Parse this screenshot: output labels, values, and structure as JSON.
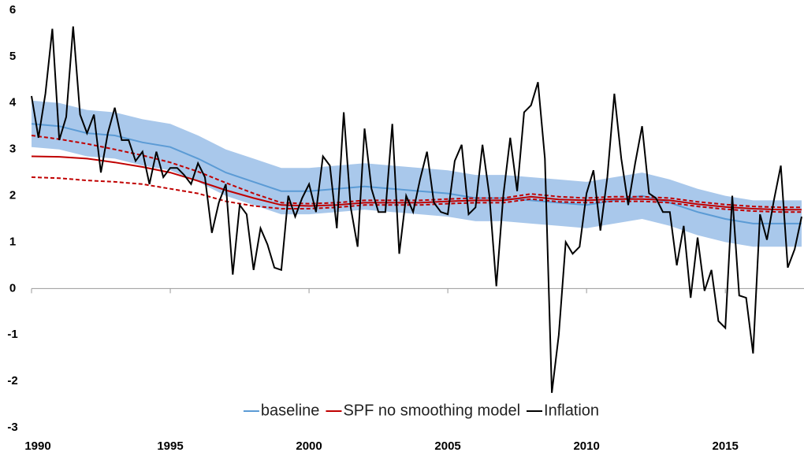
{
  "chart_data": {
    "type": "line",
    "xlim": [
      1990,
      2017.75
    ],
    "xticks": [
      1990,
      1995,
      2000,
      2005,
      2010,
      2015
    ],
    "ylim": [
      -3,
      6
    ],
    "yticks": [
      -3,
      -2,
      -1,
      0,
      1,
      2,
      3,
      4,
      5,
      6
    ],
    "legend": "bottom",
    "series": [
      {
        "name": "baseline",
        "color": "#5b9bd5",
        "band_color": "#a9c8eb",
        "x": [
          1990,
          1991,
          1992,
          1993,
          1994,
          1995,
          1996,
          1997,
          1998,
          1999,
          2000,
          2001,
          2002,
          2003,
          2004,
          2005,
          2006,
          2007,
          2008,
          2009,
          2010,
          2011,
          2012,
          2013,
          2014,
          2015,
          2016,
          2017,
          2017.75
        ],
        "values": [
          3.55,
          3.5,
          3.35,
          3.3,
          3.15,
          3.05,
          2.8,
          2.5,
          2.3,
          2.1,
          2.1,
          2.15,
          2.2,
          2.15,
          2.1,
          2.05,
          1.95,
          1.95,
          1.9,
          1.85,
          1.8,
          1.9,
          2.0,
          1.85,
          1.65,
          1.5,
          1.4,
          1.4,
          1.4
        ],
        "upper": [
          4.05,
          4.0,
          3.85,
          3.8,
          3.65,
          3.55,
          3.3,
          3.0,
          2.8,
          2.6,
          2.6,
          2.65,
          2.7,
          2.65,
          2.6,
          2.55,
          2.45,
          2.45,
          2.4,
          2.35,
          2.3,
          2.4,
          2.5,
          2.35,
          2.15,
          2.0,
          1.9,
          1.9,
          1.9
        ],
        "lower": [
          3.05,
          3.0,
          2.85,
          2.8,
          2.65,
          2.55,
          2.3,
          2.0,
          1.8,
          1.6,
          1.6,
          1.65,
          1.7,
          1.65,
          1.6,
          1.55,
          1.45,
          1.45,
          1.4,
          1.35,
          1.3,
          1.4,
          1.5,
          1.35,
          1.15,
          1.0,
          0.9,
          0.9,
          0.9
        ]
      },
      {
        "name": "SPF no smoothing model",
        "color": "#c00000",
        "x": [
          1990,
          1991,
          1992,
          1993,
          1994,
          1995,
          1996,
          1997,
          1998,
          1999,
          2000,
          2001,
          2002,
          2003,
          2004,
          2005,
          2006,
          2007,
          2008,
          2009,
          2010,
          2011,
          2012,
          2013,
          2014,
          2015,
          2016,
          2017,
          2017.75
        ],
        "values": [
          2.85,
          2.84,
          2.8,
          2.72,
          2.62,
          2.5,
          2.32,
          2.12,
          1.95,
          1.8,
          1.78,
          1.8,
          1.85,
          1.85,
          1.85,
          1.88,
          1.9,
          1.9,
          1.98,
          1.92,
          1.9,
          1.93,
          1.93,
          1.9,
          1.82,
          1.76,
          1.72,
          1.7,
          1.7
        ],
        "upper": [
          3.3,
          3.22,
          3.12,
          3.0,
          2.87,
          2.72,
          2.52,
          2.28,
          2.05,
          1.85,
          1.83,
          1.85,
          1.9,
          1.9,
          1.9,
          1.93,
          1.95,
          1.95,
          2.04,
          1.98,
          1.95,
          1.98,
          1.98,
          1.95,
          1.87,
          1.81,
          1.77,
          1.75,
          1.75
        ],
        "lower": [
          2.4,
          2.38,
          2.33,
          2.3,
          2.25,
          2.15,
          2.05,
          1.88,
          1.78,
          1.72,
          1.72,
          1.75,
          1.8,
          1.8,
          1.8,
          1.83,
          1.85,
          1.85,
          1.93,
          1.87,
          1.85,
          1.88,
          1.88,
          1.85,
          1.77,
          1.71,
          1.67,
          1.65,
          1.65
        ]
      },
      {
        "name": "Inflation",
        "color": "#000000",
        "x": [
          1990,
          1990.25,
          1990.5,
          1990.75,
          1991,
          1991.25,
          1991.5,
          1991.75,
          1992,
          1992.25,
          1992.5,
          1992.75,
          1993,
          1993.25,
          1993.5,
          1993.75,
          1994,
          1994.25,
          1994.5,
          1994.75,
          1995,
          1995.25,
          1995.5,
          1995.75,
          1996,
          1996.25,
          1996.5,
          1996.75,
          1997,
          1997.25,
          1997.5,
          1997.75,
          1998,
          1998.25,
          1998.5,
          1998.75,
          1999,
          1999.25,
          1999.5,
          1999.75,
          2000,
          2000.25,
          2000.5,
          2000.75,
          2001,
          2001.25,
          2001.5,
          2001.75,
          2002,
          2002.25,
          2002.5,
          2002.75,
          2003,
          2003.25,
          2003.5,
          2003.75,
          2004,
          2004.25,
          2004.5,
          2004.75,
          2005,
          2005.25,
          2005.5,
          2005.75,
          2006,
          2006.25,
          2006.5,
          2006.75,
          2007,
          2007.25,
          2007.5,
          2007.75,
          2008,
          2008.25,
          2008.5,
          2008.75,
          2009,
          2009.25,
          2009.5,
          2009.75,
          2010,
          2010.25,
          2010.5,
          2010.75,
          2011,
          2011.25,
          2011.5,
          2011.75,
          2012,
          2012.25,
          2012.5,
          2012.75,
          2013,
          2013.25,
          2013.5,
          2013.75,
          2014,
          2014.25,
          2014.5,
          2014.75,
          2015,
          2015.25,
          2015.5,
          2015.75,
          2016,
          2016.25,
          2016.5,
          2016.75,
          2017,
          2017.25,
          2017.5,
          2017.75
        ],
        "values": [
          4.15,
          3.25,
          4.2,
          5.6,
          3.2,
          3.7,
          5.65,
          3.75,
          3.35,
          3.75,
          2.5,
          3.35,
          3.9,
          3.2,
          3.2,
          2.75,
          2.95,
          2.25,
          2.95,
          2.4,
          2.6,
          2.6,
          2.45,
          2.25,
          2.7,
          2.4,
          1.2,
          1.85,
          2.25,
          0.3,
          1.8,
          1.6,
          0.4,
          1.3,
          0.95,
          0.45,
          0.4,
          2.0,
          1.55,
          1.95,
          2.25,
          1.65,
          2.85,
          2.65,
          1.3,
          3.8,
          1.75,
          0.9,
          3.45,
          2.15,
          1.65,
          1.65,
          3.55,
          0.75,
          2.0,
          1.65,
          2.35,
          2.95,
          1.85,
          1.65,
          1.6,
          2.75,
          3.1,
          1.6,
          1.75,
          3.1,
          2.0,
          0.05,
          2.0,
          3.25,
          2.1,
          3.8,
          3.95,
          4.45,
          2.8,
          -2.25,
          -1.0,
          1.0,
          0.75,
          0.9,
          2.05,
          2.55,
          1.25,
          2.4,
          4.2,
          2.8,
          1.8,
          2.7,
          3.5,
          2.05,
          1.95,
          1.65,
          1.65,
          0.5,
          1.35,
          -0.2,
          1.1,
          -0.05,
          0.4,
          -0.7,
          -0.85,
          2.0,
          -0.15,
          -0.2,
          -1.4,
          1.6,
          1.05,
          1.9,
          2.65,
          0.45,
          0.85,
          1.55
        ]
      }
    ]
  }
}
